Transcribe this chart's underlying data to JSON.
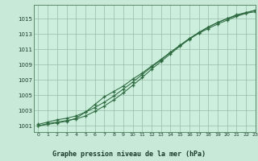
{
  "title": "Graphe pression niveau de la mer (hPa)",
  "background_color": "#c8e8d8",
  "plot_bg_color": "#cceedd",
  "line_color": "#2d6a3f",
  "grid_color": "#99bbaa",
  "xlim": [
    -0.5,
    23
  ],
  "ylim": [
    1000.2,
    1016.8
  ],
  "yticks": [
    1001,
    1003,
    1005,
    1007,
    1009,
    1011,
    1013,
    1015
  ],
  "xticks": [
    0,
    1,
    2,
    3,
    4,
    5,
    6,
    7,
    8,
    9,
    10,
    11,
    12,
    13,
    14,
    15,
    16,
    17,
    18,
    19,
    20,
    21,
    22,
    23
  ],
  "series1_x": [
    0,
    1,
    2,
    3,
    4,
    5,
    6,
    7,
    8,
    9,
    10,
    11,
    12,
    13,
    14,
    15,
    16,
    17,
    18,
    19,
    20,
    21,
    22,
    23
  ],
  "series1_y": [
    1001.2,
    1001.5,
    1001.8,
    1002.0,
    1002.3,
    1002.8,
    1003.4,
    1004.1,
    1004.9,
    1005.8,
    1006.7,
    1007.7,
    1008.7,
    1009.6,
    1010.6,
    1011.5,
    1012.4,
    1013.2,
    1013.9,
    1014.5,
    1015.0,
    1015.4,
    1015.7,
    1015.9
  ],
  "series2_x": [
    0,
    1,
    2,
    3,
    4,
    5,
    6,
    7,
    8,
    9,
    10,
    11,
    12,
    13,
    14,
    15,
    16,
    17,
    18,
    19,
    20,
    21,
    22,
    23
  ],
  "series2_y": [
    1001.0,
    1001.3,
    1001.5,
    1001.7,
    1001.9,
    1002.3,
    1002.9,
    1003.6,
    1004.4,
    1005.3,
    1006.3,
    1007.3,
    1008.4,
    1009.4,
    1010.4,
    1011.4,
    1012.3,
    1013.1,
    1013.9,
    1014.5,
    1015.0,
    1015.5,
    1015.8,
    1016.1
  ],
  "series3_x": [
    0,
    1,
    2,
    3,
    4,
    5,
    6,
    7,
    8,
    9,
    10,
    11,
    12,
    13,
    14,
    15,
    16,
    17,
    18,
    19,
    20,
    21,
    22,
    23
  ],
  "series3_y": [
    1001.0,
    1001.2,
    1001.4,
    1001.6,
    1002.0,
    1002.8,
    1003.8,
    1004.8,
    1005.5,
    1006.2,
    1007.1,
    1007.9,
    1008.8,
    1009.7,
    1010.6,
    1011.5,
    1012.4,
    1013.1,
    1013.7,
    1014.3,
    1014.8,
    1015.3,
    1015.7,
    1016.1
  ]
}
